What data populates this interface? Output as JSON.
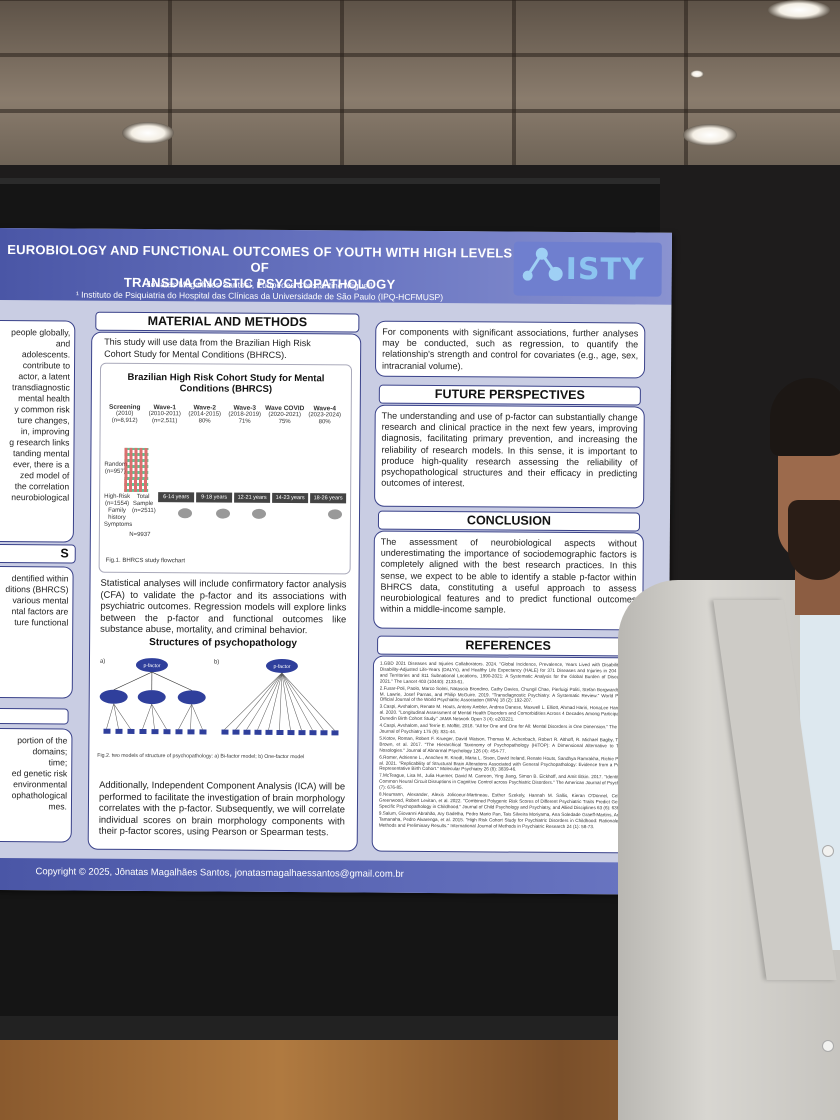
{
  "poster": {
    "title_line1": "EUROBIOLOGY AND FUNCTIONAL OUTCOMES OF YOUTH WITH HIGH LEVELS OF",
    "title_line2": "TRANSDIAGNOSTIC PSYCHOPATHOLOGY",
    "authors": "Jônatas Magalhães Santos¹, Euripedes Constantino Miguel¹",
    "affiliation": "¹ Instituto de Psiquiatria do Hospital das Clínicas da Universidade de São Paulo (IPQ-HCFMUSP)",
    "logo_text": "ISTY",
    "left_col": {
      "intro_fragments": [
        "people globally,",
        "and adolescents.",
        "contribute to",
        "actor, a latent",
        "transdiagnostic",
        "mental health",
        "y common risk",
        "ture changes,",
        "in, improving",
        "g research links",
        "tanding mental",
        "ever, there is a",
        "zed model of",
        "the correlation",
        "neurobiological"
      ],
      "section2_title": "S",
      "section2_fragments": [
        "dentified within",
        "ditions (BHRCS)",
        "various mental",
        "ntal factors are",
        "ture functional"
      ],
      "section3_fragments": [
        "portion of the",
        "domains;",
        "time;",
        "ed genetic risk",
        "environmental",
        "ophathological",
        "mes."
      ]
    },
    "methods": {
      "title": "MATERIAL AND METHODS",
      "intro": "This study will use data from the Brazilian High Risk Cohort Study for Mental Conditions (BHRCS).",
      "figure_title": "Brazilian High Risk Cohort Study for Mental Conditions (BHRCS)",
      "waves": [
        {
          "name": "Screening",
          "years": "(2010)",
          "n": "(n=8,912)"
        },
        {
          "name": "Wave-1",
          "years": "(2010-2011)",
          "n": "(n=2,511)"
        },
        {
          "name": "Wave-2",
          "years": "(2014-2015)",
          "n": "80%"
        },
        {
          "name": "Wave-3",
          "years": "(2018-2019)",
          "n": "71%"
        },
        {
          "name": "Wave COVID",
          "years": "(2020-2021)",
          "n": "75%"
        },
        {
          "name": "Wave-4",
          "years": "(2023-2024)",
          "n": "80%"
        }
      ],
      "ages": [
        "6-14 years",
        "9-18 years",
        "12-21 years",
        "14-23 years",
        "18-26 years"
      ],
      "samples": [
        "Random (n=957)",
        "High-Risk (n=1554) Family history Symptoms",
        "Total Sample (n=2511)",
        "N=9937"
      ],
      "fig1_caption": "Fig.1. BHRCS study flowchart",
      "analysis": "Statistical analyses will include confirmatory factor analysis (CFA) to validate the p-factor and its associations with psychiatric outcomes. Regression models will explore links between the p-factor and functional outcomes like substance abuse, mortality, and criminal behavior.",
      "structures_title": "Structures of psychopathology",
      "model_a": "a)",
      "model_b": "b)",
      "pfactor": "p-factor",
      "factors": [
        "Internalizing disorders",
        "Externalizing disorders",
        "Thought disorders"
      ],
      "fig2_caption": "Fig.2. two models of structure of psychopathology: a) Bi-factor model; b) One-factor model",
      "ica": "Additionally, Independent Component Analysis (ICA) will be performed to facilitate the investigation of brain morphology correlates with the p-factor. Subsequently, we will correlate individual scores on brain morphology components with their p-factor scores, using Pearson or Spearman tests."
    },
    "components": "For components with significant associations, further analyses may be conducted, such as regression, to quantify the relationship's strength and control for covariates (e.g., age, sex, intracranial volume).",
    "future": {
      "title": "FUTURE PERSPECTIVES",
      "text": "The understanding and use of p-factor can substantially change research and clinical practice in the next few years, improving diagnosis, facilitating primary prevention, and increasing the reliability of research models. In this sense, it is important to produce high-quality research assessing the reliability of psychopathological structures and their efficacy in predicting outcomes of interest."
    },
    "conclusion": {
      "title": "CONCLUSION",
      "text": "The assessment of neurobiological aspects without underestimating the importance of sociodemographic factors is completely aligned with the best research practices. In this sense, we expect to be able to identify a stable p-factor within BHRCS data, constituting a useful approach to assess neurobiological features and to predict functional outcomes within a middle-income sample."
    },
    "references": {
      "title": "REFERENCES",
      "items": [
        "1.GBD 2021 Diseases and Injuries Collaborators. 2024. \"Global Incidence, Prevalence, Years Lived with Disability (YLDs), Disability-Adjusted Life-Years (DALYs), and Healthy Life Expectancy (HALE) for 371 Diseases and Injuries in 204 Countries and Territories and 811 Subnational Locations, 1990-2021: A Systematic Analysis for the Global Burden of Disease Study 2021.\" The Lancet 403 (10440): 2133-61.",
        "2.Fusar-Poli, Paolo, Marco Solmi, Natascia Brondino, Cathy Davies, Chungil Chae, Pierluigi Politi, Stefan Borgwardt, Stephen M. Lawrie, Josef Parnas, and Philip McGuire. 2019. \"Transdiagnostic Psychiatry: A Systematic Review.\" World Psychiatry: Official Journal of the World Psychiatric Association (WPA) 18 (2): 192-207.",
        "3.Caspi, Avshalom, Renate M. Houts, Antony Ambler, Andrea Danese, Maxwell L. Elliott, Ahmad Hariri, HonaLee Harrington, et al. 2020. \"Longitudinal Assessment of Mental Health Disorders and Comorbidities Across 4 Decades Among Participants in the Dunedin Birth Cohort Study.\" JAMA Network Open 3 (4): e203221.",
        "4.Caspi, Avshalom, and Terrie E. Moffitt. 2018. \"All for One and One for All: Mental Disorders in One Dimension.\" The American Journal of Psychiatry 175 (9): 831-44.",
        "5.Kotov, Roman, Robert F. Krueger, David Watson, Thomas M. Achenbach, Robert R. Althoff, R. Michael Bagby, Timothy A. Brown, et al. 2017. \"The Hierarchical Taxonomy of Psychopathology (HiTOP): A Dimensional Alternative to Traditional Nosologies.\" Journal of Abnormal Psychology 126 (4): 454-77.",
        "6.Romer, Adrienne L., Annchen R. Knodt, Maria L. Sison, David Ireland, Renate Houts, Sandhya Ramrakha, Richie Poulton, et al. 2021. \"Replicability of Structural Brain Alterations Associated with General Psychopathology: Evidence from a Population-Representative Birth Cohort.\" Molecular Psychiatry 26 (8): 3839-46.",
        "7.McTeague, Lisa M., Julia Huemer, David M. Carreon, Ying Jiang, Simon B. Eickhoff, and Amit Etkin. 2017. \"Identification of Common Neural Circuit Disruptions in Cognitive Control across Psychiatric Disorders.\" The American Journal of Psychiatry 174 (7): 676-85.",
        "8.Neumann, Alexander, Alexis Jolicoeur-Martineau, Esther Szekely, Hannah M. Sallis, Kieran O'Donnel, Celia M. T. Greenwood, Robert Levitan, et al. 2022. \"Combined Polygenic Risk Scores of Different Psychiatric Traits Predict General and Specific Psychopathology in Childhood.\" Journal of Child Psychology and Psychiatry, and Allied Disciplines 63 (6): 636-45.",
        "9.Salum, Giovanni Abrahão, Ary Gadelha, Pedro Mario Pan, Tais Silveira Moriyama, Ana Soledade Graeff-Martins, Ana Carina Tamanaha, Pedro Alvarenga, et al. 2015. \"High Risk Cohort Study for Psychiatric Disorders in Childhood: Rationale, Design, Methods and Preliminary Results.\" International Journal of Methods in Psychiatric Research 24 (1): 58-73."
      ]
    },
    "copyright": "Copyright © 2025, Jônatas Magalhães Santos, jonatasmagalhaessantos@gmail.com.br"
  }
}
